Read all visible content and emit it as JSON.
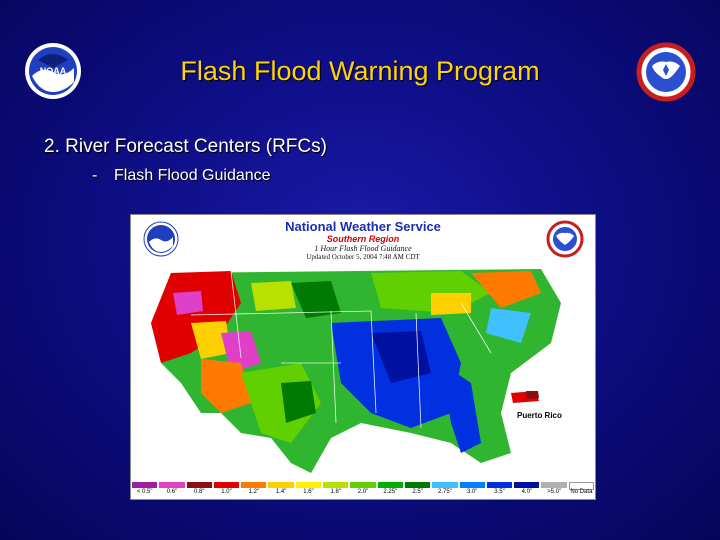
{
  "slide": {
    "title": "Flash Flood Warning Program",
    "bullet_main": "2.  River Forecast Centers (RFCs)",
    "bullet_sub_dash": "-",
    "bullet_sub": "Flash Flood Guidance"
  },
  "logos": {
    "left_text": "NOAA",
    "colors": {
      "title": "#ffd400",
      "background": "#0e0e86"
    }
  },
  "map": {
    "header_title": "National Weather Service",
    "header_region": "Southern Region",
    "header_product": "1 Hour Flash Flood Guidance",
    "header_updated": "Updated October 5, 2004 7:48 AM CDT",
    "inset_label": "Puerto Rico",
    "legend": [
      {
        "label": "< 0.5\"",
        "color": "#9b1fa3"
      },
      {
        "label": "0.6\"",
        "color": "#e040c8"
      },
      {
        "label": "0.8\"",
        "color": "#8a1010"
      },
      {
        "label": "1.0\"",
        "color": "#e00000"
      },
      {
        "label": "1.2\"",
        "color": "#ff7a00"
      },
      {
        "label": "1.4\"",
        "color": "#ffd000"
      },
      {
        "label": "1.6\"",
        "color": "#fff200"
      },
      {
        "label": "1.8\"",
        "color": "#b8e000"
      },
      {
        "label": "2.0\"",
        "color": "#60d000"
      },
      {
        "label": "2.25\"",
        "color": "#00b000"
      },
      {
        "label": "2.5\"",
        "color": "#007a00"
      },
      {
        "label": "2.75\"",
        "color": "#40c0ff"
      },
      {
        "label": "3.0\"",
        "color": "#0080ff"
      },
      {
        "label": "3.5\"",
        "color": "#0030e0"
      },
      {
        "label": "4.0\"",
        "color": "#0010a0"
      },
      {
        "label": ">5.0\"",
        "color": "#b0b0b0"
      },
      {
        "label": "No Data",
        "color": "#ffffff"
      }
    ]
  }
}
